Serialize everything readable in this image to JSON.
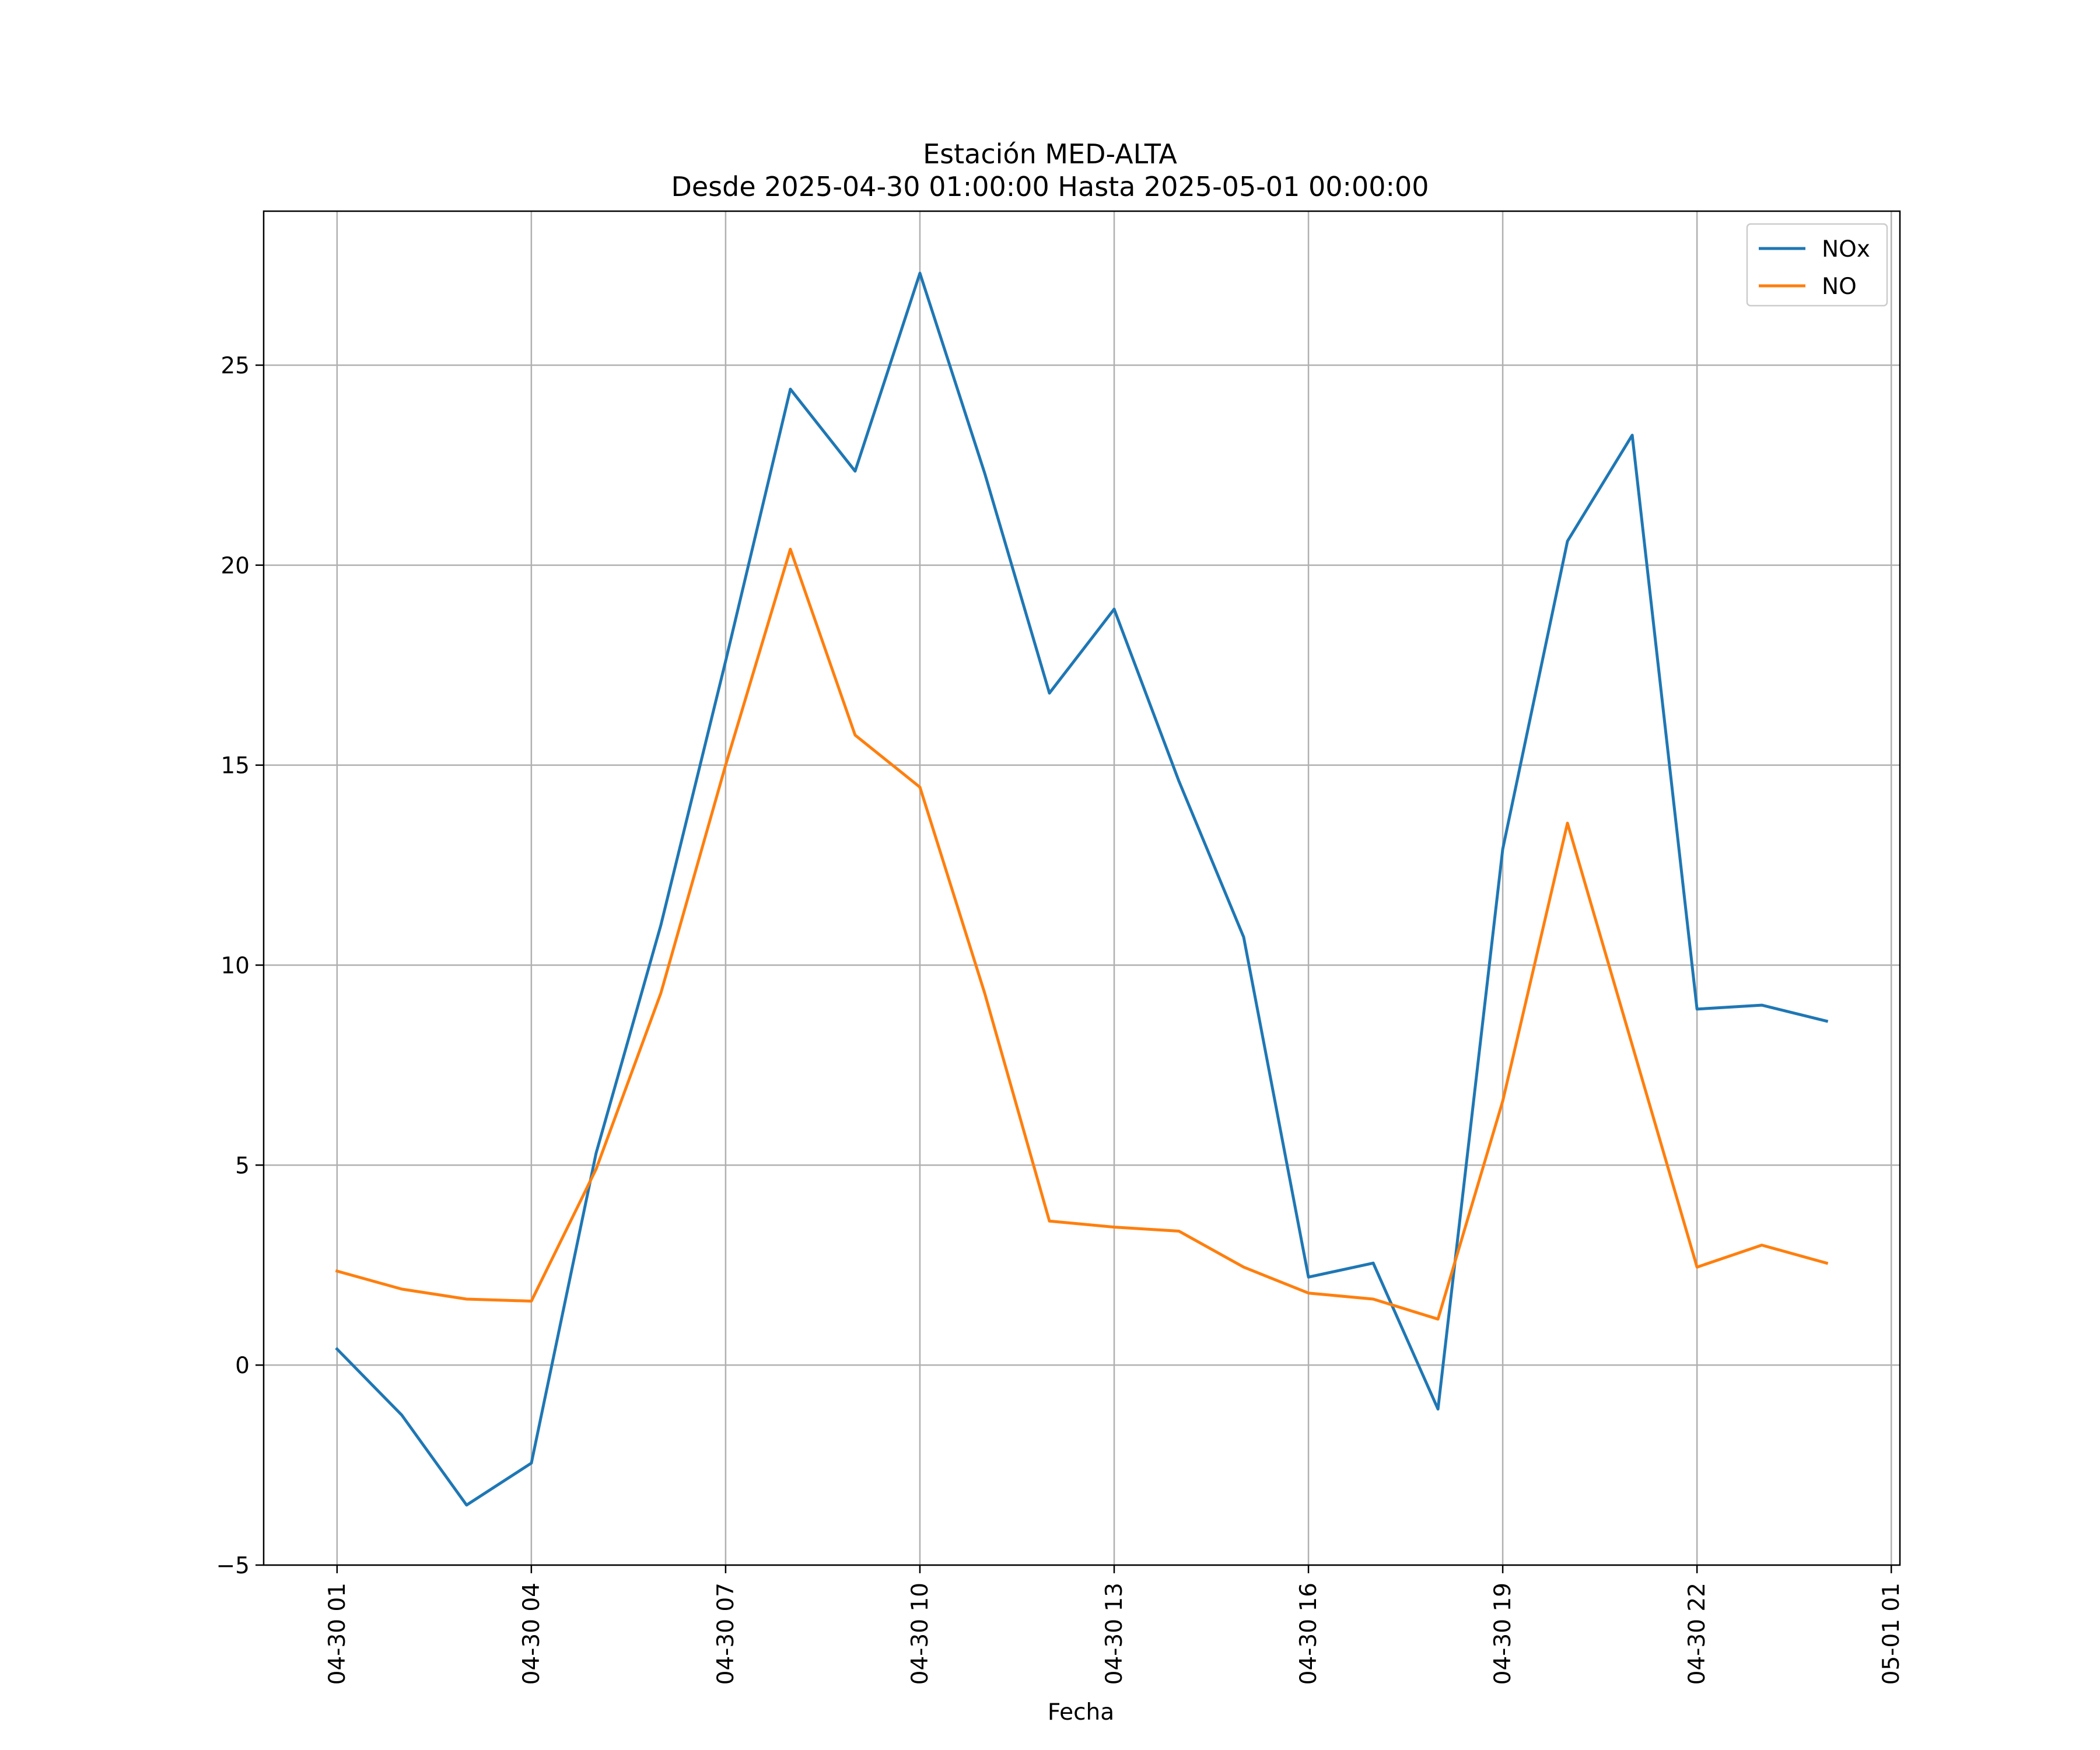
{
  "chart_data": {
    "type": "line",
    "title": "Estación MED-ALTA",
    "subtitle": "Desde 2025-04-30 01:00:00 Hasta 2025-05-01 00:00:00",
    "xlabel": "Fecha",
    "ylabel": "",
    "x": [
      "2025-04-30 01:00",
      "2025-04-30 02:00",
      "2025-04-30 03:00",
      "2025-04-30 04:00",
      "2025-04-30 05:00",
      "2025-04-30 06:00",
      "2025-04-30 07:00",
      "2025-04-30 08:00",
      "2025-04-30 09:00",
      "2025-04-30 10:00",
      "2025-04-30 11:00",
      "2025-04-30 12:00",
      "2025-04-30 13:00",
      "2025-04-30 14:00",
      "2025-04-30 15:00",
      "2025-04-30 16:00",
      "2025-04-30 17:00",
      "2025-04-30 18:00",
      "2025-04-30 19:00",
      "2025-04-30 20:00",
      "2025-04-30 21:00",
      "2025-04-30 22:00",
      "2025-04-30 23:00",
      "2025-05-01 00:00"
    ],
    "series": [
      {
        "name": "NOx",
        "color": "#1f77b4",
        "values": [
          0.4,
          -1.25,
          -3.5,
          -2.45,
          5.3,
          11.0,
          17.6,
          24.4,
          22.35,
          27.3,
          22.3,
          16.8,
          18.9,
          14.6,
          10.7,
          2.2,
          2.55,
          -1.1,
          12.9,
          20.6,
          23.25,
          8.9,
          9.0,
          8.6
        ]
      },
      {
        "name": "NO",
        "color": "#ff7f0e",
        "values": [
          2.35,
          1.9,
          1.65,
          1.6,
          4.9,
          9.3,
          15.0,
          20.4,
          15.75,
          14.45,
          9.3,
          3.6,
          3.45,
          3.35,
          2.45,
          1.8,
          1.65,
          1.15,
          6.6,
          13.55,
          8.0,
          2.45,
          3.0,
          2.55
        ]
      }
    ],
    "xlim": [
      "2025-04-29 23:52",
      "2025-05-01 01:08"
    ],
    "xticks": [
      "2025-04-30 01:00",
      "2025-04-30 04:00",
      "2025-04-30 07:00",
      "2025-04-30 10:00",
      "2025-04-30 13:00",
      "2025-04-30 16:00",
      "2025-04-30 19:00",
      "2025-04-30 22:00",
      "2025-05-01 01:00"
    ],
    "xtick_labels": [
      "04-30 01",
      "04-30 04",
      "04-30 07",
      "04-30 10",
      "04-30 13",
      "04-30 16",
      "04-30 19",
      "04-30 22",
      "05-01 01"
    ],
    "ylim": [
      -5,
      28.85
    ],
    "yticks": [
      -5,
      0,
      5,
      10,
      15,
      20,
      25
    ],
    "ytick_labels": [
      "−5",
      "0",
      "5",
      "10",
      "15",
      "20",
      "25"
    ],
    "grid": true,
    "legend": "top-right"
  }
}
